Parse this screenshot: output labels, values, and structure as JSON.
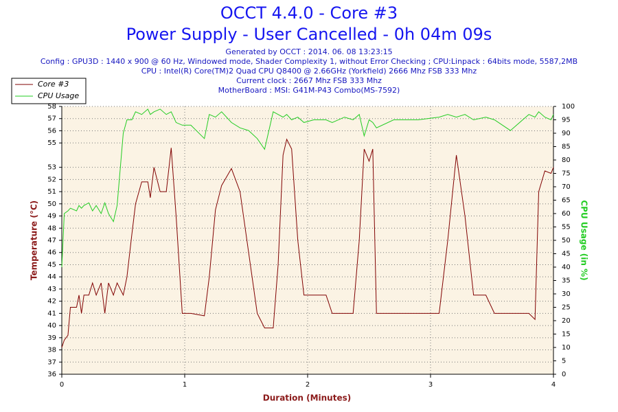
{
  "chart_data": {
    "type": "line",
    "title": "OCCT 4.4.0 - Core #3",
    "subtitle": "Power Supply - User Cancelled - 0h 04m 09s",
    "notes": [
      "Generated by OCCT : 2014. 06. 08 13:23:15",
      "Config : GPU3D : 1440 x 900 @ 60 Hz, Windowed mode, Shader Complexity 1, without Error Checking ; CPU:Linpack : 64bits mode, 5587,2MB",
      "CPU : Intel(R) Core(TM)2 Quad CPU Q8400 @ 2.66GHz (Yorkfield) 2666 Mhz FSB 333 Mhz",
      "Current clock : 2667 Mhz FSB 333 Mhz",
      "MotherBoard : MSI: G41M-P43 Combo(MS-7592)"
    ],
    "xlabel": "Duration (Minutes)",
    "ylabel": "Temperature (°C)",
    "y2label": "CPU Usage (in %)",
    "x": [
      0,
      0.02,
      0.05,
      0.07,
      0.12,
      0.14,
      0.16,
      0.18,
      0.22,
      0.25,
      0.28,
      0.32,
      0.35,
      0.38,
      0.42,
      0.45,
      0.5,
      0.53,
      0.57,
      0.6,
      0.65,
      0.7,
      0.72,
      0.75,
      0.8,
      0.85,
      0.89,
      0.93,
      0.98,
      1.05,
      1.16,
      1.2,
      1.25,
      1.3,
      1.38,
      1.45,
      1.52,
      1.59,
      1.65,
      1.72,
      1.76,
      1.8,
      1.83,
      1.87,
      1.92,
      1.97,
      2.05,
      2.15,
      2.2,
      2.3,
      2.37,
      2.42,
      2.46,
      2.5,
      2.53,
      2.56,
      2.7,
      2.9,
      3.07,
      3.14,
      3.21,
      3.28,
      3.35,
      3.45,
      3.52,
      3.65,
      3.8,
      3.85,
      3.88,
      3.93,
      3.98,
      4.0
    ],
    "series": [
      {
        "name": "Core #3",
        "color": "#800000",
        "values": [
          38.2,
          38.8,
          39.2,
          41.5,
          41.5,
          42.5,
          41,
          42.5,
          42.5,
          43.5,
          42.5,
          43.5,
          41,
          43.5,
          42.5,
          43.5,
          42.5,
          44,
          47.5,
          50,
          51.8,
          51.8,
          50.5,
          53,
          51,
          51,
          54.6,
          49,
          41,
          41,
          40.8,
          44,
          49.5,
          51.5,
          52.9,
          51,
          46,
          41,
          39.8,
          39.8,
          45,
          54,
          55.3,
          54.5,
          47,
          42.5,
          42.5,
          42.5,
          41,
          41,
          41,
          47,
          54.5,
          53.5,
          54.5,
          41,
          41,
          41,
          41,
          47,
          54,
          49,
          42.5,
          42.5,
          41,
          41,
          41,
          40.5,
          51,
          52.7,
          52.5,
          53
        ]
      },
      {
        "name": "CPU Usage",
        "color": "#22cc22",
        "axis": "y2",
        "values": [
          40,
          60,
          61,
          62,
          61,
          63,
          62,
          63,
          64,
          61,
          63,
          60,
          64,
          60,
          57,
          63,
          90,
          95,
          95,
          98,
          97,
          99,
          97,
          98,
          99,
          97,
          98,
          94,
          93,
          93,
          88,
          97,
          96,
          98,
          94,
          92,
          91,
          88,
          84,
          98,
          97,
          96,
          97,
          95,
          96,
          94,
          95,
          95,
          94,
          96,
          95,
          97,
          89,
          95,
          94,
          92,
          95,
          95,
          96,
          97,
          96,
          97,
          95,
          96,
          95,
          91,
          97,
          96,
          98,
          96,
          95,
          97
        ]
      }
    ],
    "xlim": [
      0,
      4
    ],
    "xticks": [
      0,
      1,
      2,
      3,
      4
    ],
    "ylim": [
      36,
      58
    ],
    "yticks": [
      36,
      37,
      38,
      39,
      40,
      41,
      42,
      43,
      44,
      45,
      46,
      47,
      48,
      49,
      50,
      51,
      52,
      53,
      55,
      56,
      57,
      58
    ],
    "y2lim": [
      0,
      100
    ],
    "y2ticks": [
      0,
      5,
      10,
      15,
      20,
      25,
      30,
      35,
      40,
      45,
      50,
      55,
      60,
      65,
      70,
      75,
      80,
      85,
      90,
      95,
      100
    ],
    "grid": true,
    "legend": "upper left"
  }
}
